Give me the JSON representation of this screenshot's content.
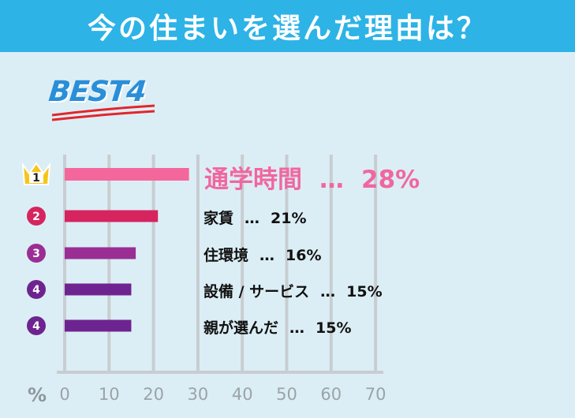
{
  "header": {
    "title": "今の住まいを選んだ理由は？"
  },
  "badge": {
    "text": "BEST4"
  },
  "chart_data": {
    "type": "bar",
    "orientation": "horizontal",
    "categories": [
      "通学時間",
      "家賃",
      "住環境",
      "設備 / サービス",
      "親が選んだ"
    ],
    "values": [
      28,
      21,
      16,
      15,
      15
    ],
    "ranks": [
      "1",
      "2",
      "3",
      "4",
      "4"
    ],
    "value_labels": [
      "28%",
      "21%",
      "16%",
      "15%",
      "15%"
    ],
    "separator": "…",
    "unit_label": "%",
    "xlim": [
      0,
      70
    ],
    "xticks": [
      "0",
      "10",
      "20",
      "30",
      "40",
      "50",
      "60",
      "70"
    ],
    "grid": true,
    "colors": [
      "#f4679c",
      "#d6245e",
      "#9a2e95",
      "#6e2490",
      "#6e2490"
    ],
    "rank_colors": [
      "#f5c518",
      "#d6245e",
      "#9a2e95",
      "#6e2490",
      "#6e2490"
    ]
  }
}
